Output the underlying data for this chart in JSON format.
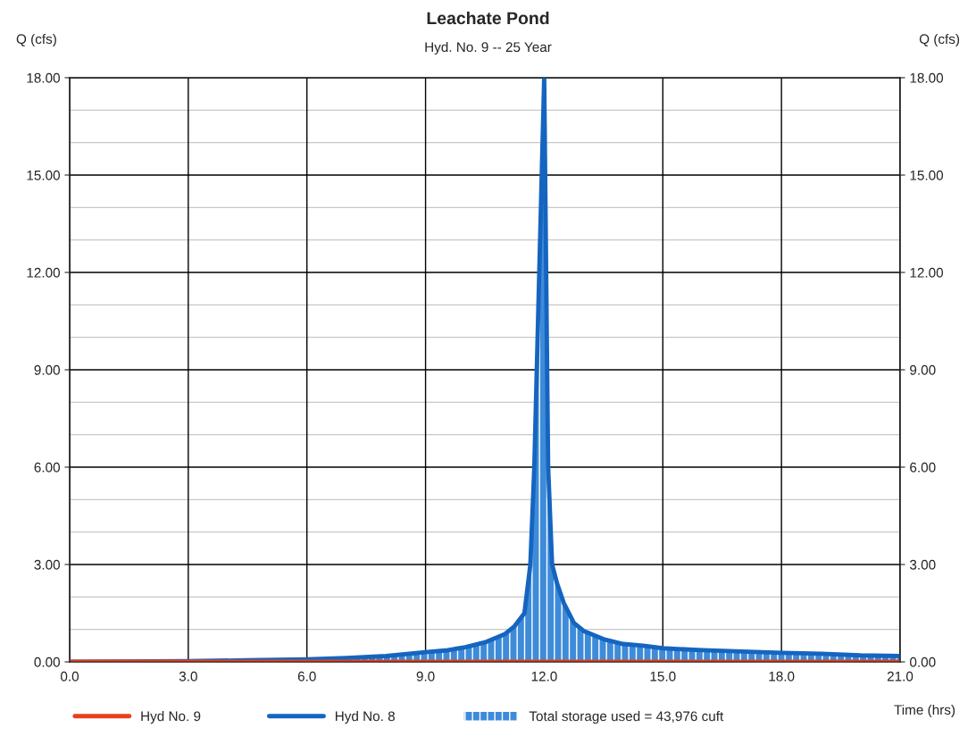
{
  "chart_data": {
    "type": "line",
    "title": "Leachate Pond",
    "subtitle": "Hyd. No. 9 -- 25 Year",
    "xlabel": "Time (hrs)",
    "ylabel": "Q (cfs)",
    "y2label": "Q (cfs)",
    "series": [
      {
        "name": "Hyd No. 9",
        "color": "#e8401c",
        "x": [
          0,
          21
        ],
        "values": [
          0,
          0
        ]
      },
      {
        "name": "Hyd No. 8",
        "color": "#1565c0",
        "x": [
          0,
          3,
          4.5,
          6,
          7,
          8,
          9,
          9.5,
          10,
          10.5,
          11,
          11.25,
          11.5,
          11.65,
          11.75,
          12.0,
          12.1,
          12.2,
          12.33,
          12.5,
          12.75,
          13,
          13.5,
          14,
          14.5,
          15,
          16,
          17,
          18,
          19,
          20,
          21
        ],
        "values": [
          0,
          0.02,
          0.05,
          0.08,
          0.12,
          0.18,
          0.3,
          0.35,
          0.45,
          0.6,
          0.85,
          1.1,
          1.5,
          3.0,
          6.0,
          18.0,
          6.0,
          3.0,
          2.4,
          1.8,
          1.2,
          0.95,
          0.7,
          0.55,
          0.5,
          0.42,
          0.36,
          0.32,
          0.28,
          0.25,
          0.2,
          0.18
        ]
      },
      {
        "name": "Total storage used = 43,976 cuft",
        "type": "area",
        "color": "#3d8bd9",
        "x": [
          7,
          8,
          9,
          9.5,
          10,
          10.5,
          11,
          11.25,
          11.5,
          11.65,
          11.75,
          12.0,
          12.1,
          12.2,
          12.33,
          12.5,
          12.75,
          13,
          13.5,
          14,
          14.5,
          15,
          16,
          17,
          18,
          19,
          20,
          21
        ],
        "values": [
          0.12,
          0.18,
          0.3,
          0.35,
          0.45,
          0.6,
          0.85,
          1.1,
          1.5,
          3.0,
          6.0,
          18.0,
          6.0,
          3.0,
          2.4,
          1.8,
          1.2,
          0.95,
          0.7,
          0.55,
          0.5,
          0.42,
          0.36,
          0.32,
          0.28,
          0.25,
          0.2,
          0.18
        ]
      }
    ],
    "xlim": [
      0,
      21
    ],
    "xticks": [
      {
        "value": 0,
        "label": "0.0"
      },
      {
        "value": 3,
        "label": "3.0"
      },
      {
        "value": 6,
        "label": "6.0"
      },
      {
        "value": 9,
        "label": "9.0"
      },
      {
        "value": 12,
        "label": "12.0"
      },
      {
        "value": 15,
        "label": "15.0"
      },
      {
        "value": 18,
        "label": "18.0"
      },
      {
        "value": 21,
        "label": "21.0"
      }
    ],
    "ylim": [
      0,
      18
    ],
    "yticks": [
      {
        "value": 0,
        "label": "0.00"
      },
      {
        "value": 3,
        "label": "3.00"
      },
      {
        "value": 6,
        "label": "6.00"
      },
      {
        "value": 9,
        "label": "9.00"
      },
      {
        "value": 12,
        "label": "12.00"
      },
      {
        "value": 15,
        "label": "15.00"
      },
      {
        "value": 18,
        "label": "18.00"
      }
    ],
    "y2lim": [
      0,
      18
    ],
    "y2ticks": [
      {
        "value": 0,
        "label": "0.00"
      },
      {
        "value": 3,
        "label": "3.00"
      },
      {
        "value": 6,
        "label": "6.00"
      },
      {
        "value": 9,
        "label": "9.00"
      },
      {
        "value": 12,
        "label": "12.00"
      },
      {
        "value": 15,
        "label": "15.00"
      },
      {
        "value": 18,
        "label": "18.00"
      }
    ],
    "grid": true,
    "legend": "bottom"
  }
}
